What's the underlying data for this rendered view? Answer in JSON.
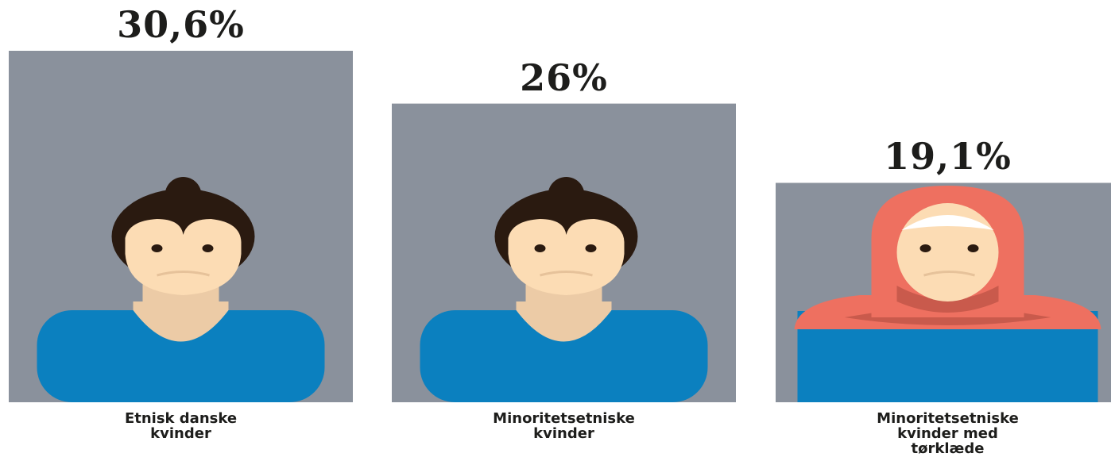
{
  "chart_data": {
    "type": "bar",
    "title": "",
    "xlabel": "",
    "ylabel": "",
    "categories": [
      [
        "Etnisk danske",
        "kvinder"
      ],
      [
        "Minoritetsetniske",
        "kvinder"
      ],
      [
        "Minoritetsetniske",
        "kvinder med",
        "tørklæde"
      ]
    ],
    "values": [
      30.6,
      26,
      19.1
    ],
    "value_labels": [
      "30,6%",
      "26%",
      "19,1%"
    ],
    "icons": [
      "woman-icon",
      "woman-icon",
      "woman-with-headscarf-icon"
    ],
    "ylim": [
      0,
      30.6
    ],
    "grid": false,
    "legend": "none"
  },
  "colors": {
    "bar": "#8a919c",
    "shirt": "#0b80bf",
    "skin": "#fcdcb4",
    "neck": "#eccba6",
    "hair": "#2a1a10",
    "headscarf": "#ee7060",
    "headscarf_shadow": "#c95a4c",
    "text": "#1d1d1b"
  }
}
